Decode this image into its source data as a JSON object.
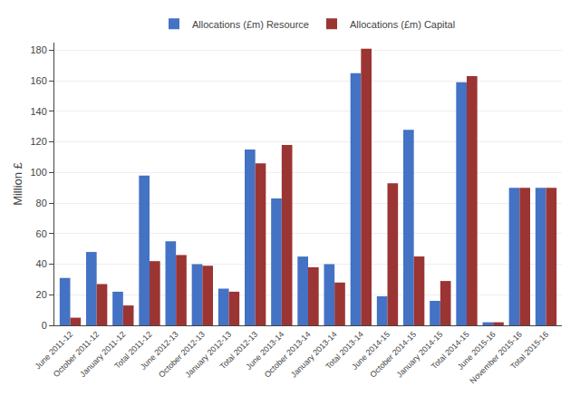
{
  "chart_data": {
    "type": "bar",
    "categories": [
      "June 2011-12",
      "October 2011-12",
      "January 2011-12",
      "Total 2011-12",
      "June 2012-13",
      "October 2012-13",
      "January 2012-13",
      "Total 2012-13",
      "June 2013-14",
      "October 2013-14",
      "January 2013-14",
      "Total 2013-14",
      "June 2014-15",
      "October 2014-15",
      "January 2014-15",
      "Total 2014-15",
      "June 2015-16",
      "November 2015-16",
      "Total 2015-16"
    ],
    "series": [
      {
        "name": "Allocations (£m) Resource",
        "color": "#4472C4",
        "values": [
          31,
          48,
          22,
          98,
          55,
          40,
          24,
          115,
          83,
          45,
          40,
          165,
          19,
          128,
          16,
          159,
          2,
          90,
          90
        ]
      },
      {
        "name": "Allocations (£m) Capital",
        "color": "#9B3533",
        "values": [
          5,
          27,
          13,
          42,
          46,
          39,
          22,
          106,
          118,
          38,
          28,
          181,
          93,
          45,
          29,
          163,
          2,
          90,
          90
        ]
      }
    ],
    "ylabel": "Million £",
    "ylim": [
      0,
      185
    ],
    "yticks": [
      0,
      20,
      40,
      60,
      80,
      100,
      120,
      140,
      160,
      180
    ],
    "grid": true,
    "legend": "top"
  }
}
